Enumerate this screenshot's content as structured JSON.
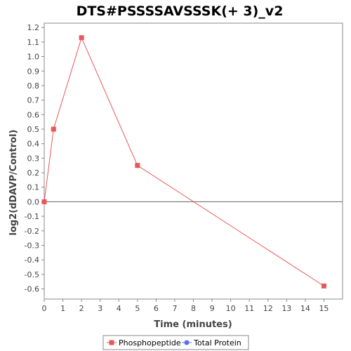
{
  "chart_data": {
    "type": "line",
    "title": "DTS#PSSSSAVSSSK(+ 3)_v2",
    "xlabel": "Time (minutes)",
    "ylabel": "log2(dDAVP/Control)",
    "xlim": [
      0,
      16
    ],
    "ylim": [
      -0.67,
      1.23
    ],
    "x_ticks": [
      0,
      1,
      2,
      3,
      4,
      5,
      6,
      7,
      8,
      9,
      10,
      11,
      12,
      13,
      14,
      15
    ],
    "y_ticks": [
      1.2,
      1.1,
      1.0,
      0.9,
      0.8,
      0.7,
      0.6,
      0.5,
      0.4,
      0.3,
      0.2,
      0.1,
      0.0,
      -0.1,
      -0.2,
      -0.3,
      -0.4,
      -0.5,
      -0.6
    ],
    "zero_line": true,
    "grid": false,
    "legend_position": "bottom",
    "series": [
      {
        "name": "Phosphopeptide",
        "color": "#e8575a",
        "marker": "square",
        "x": [
          0,
          0.5,
          2,
          5,
          15
        ],
        "y": [
          0.0,
          0.5,
          1.13,
          0.25,
          -0.58
        ]
      },
      {
        "name": "Total Protein",
        "color": "#5b6fe8",
        "marker": "circle",
        "x": [],
        "y": []
      }
    ]
  }
}
